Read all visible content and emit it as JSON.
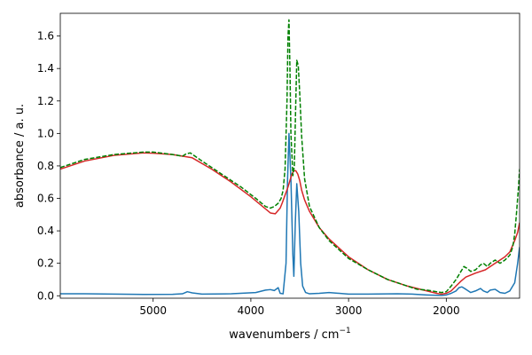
{
  "chart_data": {
    "type": "line",
    "title": "",
    "xlabel": "wavenumbers / cm",
    "xlabel_superscript": "−1",
    "ylabel": "absorbance / a. u.",
    "xlim": [
      5950,
      1250
    ],
    "ylim": [
      -0.015,
      1.74
    ],
    "x_ticks": [
      5000,
      4000,
      3000,
      2000
    ],
    "x_tick_labels": [
      "5000",
      "4000",
      "3000",
      "2000"
    ],
    "y_ticks": [
      0.0,
      0.2,
      0.4,
      0.6,
      0.8,
      1.0,
      1.2,
      1.4,
      1.6
    ],
    "y_tick_labels": [
      "0.0",
      "0.2",
      "0.4",
      "0.6",
      "0.8",
      "1.0",
      "1.2",
      "1.4",
      "1.6"
    ],
    "grid": false,
    "legend": "none",
    "series": [
      {
        "color": "#1f77b4",
        "style": "solid",
        "x": [
          5950,
          5700,
          5400,
          5100,
          4800,
          4700,
          4650,
          4600,
          4500,
          4200,
          3950,
          3850,
          3800,
          3760,
          3720,
          3700,
          3670,
          3640,
          3625,
          3610,
          3590,
          3570,
          3560,
          3545,
          3530,
          3510,
          3490,
          3470,
          3440,
          3400,
          3300,
          3200,
          3000,
          2800,
          2500,
          2350,
          2200,
          2050,
          2000,
          1950,
          1900,
          1870,
          1840,
          1800,
          1750,
          1700,
          1650,
          1620,
          1580,
          1550,
          1500,
          1450,
          1400,
          1350,
          1300,
          1270,
          1250
        ],
        "y": [
          0.012,
          0.012,
          0.01,
          0.008,
          0.009,
          0.012,
          0.025,
          0.018,
          0.01,
          0.012,
          0.02,
          0.035,
          0.038,
          0.032,
          0.05,
          0.015,
          0.012,
          0.2,
          0.7,
          1.0,
          0.72,
          0.25,
          0.12,
          0.45,
          0.69,
          0.52,
          0.2,
          0.06,
          0.02,
          0.012,
          0.015,
          0.02,
          0.01,
          0.01,
          0.012,
          0.01,
          0.005,
          0.002,
          0.005,
          0.015,
          0.03,
          0.05,
          0.055,
          0.04,
          0.02,
          0.03,
          0.045,
          0.03,
          0.02,
          0.035,
          0.04,
          0.02,
          0.015,
          0.03,
          0.08,
          0.2,
          0.3
        ]
      },
      {
        "color": "#d62728",
        "style": "solid",
        "x": [
          5950,
          5700,
          5400,
          5100,
          5000,
          4800,
          4600,
          4400,
          4200,
          4000,
          3900,
          3800,
          3750,
          3700,
          3680,
          3650,
          3620,
          3600,
          3580,
          3560,
          3540,
          3520,
          3500,
          3480,
          3450,
          3400,
          3300,
          3200,
          3000,
          2800,
          2600,
          2400,
          2200,
          2100,
          2050,
          2000,
          1950,
          1900,
          1850,
          1800,
          1700,
          1600,
          1500,
          1400,
          1350,
          1300,
          1270,
          1250
        ],
        "y": [
          0.78,
          0.83,
          0.865,
          0.88,
          0.878,
          0.87,
          0.85,
          0.78,
          0.7,
          0.61,
          0.56,
          0.51,
          0.505,
          0.54,
          0.57,
          0.62,
          0.67,
          0.71,
          0.75,
          0.77,
          0.77,
          0.75,
          0.71,
          0.65,
          0.59,
          0.52,
          0.42,
          0.35,
          0.24,
          0.16,
          0.1,
          0.06,
          0.03,
          0.015,
          0.01,
          0.015,
          0.03,
          0.06,
          0.09,
          0.115,
          0.14,
          0.16,
          0.2,
          0.24,
          0.27,
          0.34,
          0.39,
          0.45
        ]
      },
      {
        "color": "#008000",
        "style": "dashed",
        "x": [
          5950,
          5700,
          5400,
          5100,
          5000,
          4800,
          4700,
          4660,
          4620,
          4500,
          4300,
          4100,
          3950,
          3850,
          3800,
          3760,
          3720,
          3690,
          3670,
          3650,
          3630,
          3620,
          3610,
          3600,
          3590,
          3570,
          3555,
          3540,
          3530,
          3515,
          3500,
          3480,
          3450,
          3400,
          3300,
          3200,
          3000,
          2800,
          2600,
          2400,
          2300,
          2200,
          2100,
          2050,
          2000,
          1950,
          1900,
          1850,
          1820,
          1790,
          1750,
          1700,
          1650,
          1620,
          1580,
          1550,
          1500,
          1450,
          1400,
          1350,
          1320,
          1300,
          1280,
          1260,
          1250
        ],
        "y": [
          0.79,
          0.84,
          0.87,
          0.885,
          0.885,
          0.87,
          0.86,
          0.875,
          0.88,
          0.83,
          0.75,
          0.67,
          0.6,
          0.55,
          0.54,
          0.55,
          0.57,
          0.6,
          0.65,
          0.78,
          1.2,
          1.6,
          1.7,
          1.4,
          1.0,
          0.74,
          0.8,
          1.2,
          1.45,
          1.42,
          1.25,
          0.98,
          0.72,
          0.55,
          0.42,
          0.34,
          0.23,
          0.16,
          0.1,
          0.06,
          0.04,
          0.035,
          0.025,
          0.02,
          0.025,
          0.06,
          0.1,
          0.15,
          0.18,
          0.17,
          0.15,
          0.16,
          0.19,
          0.2,
          0.18,
          0.2,
          0.22,
          0.2,
          0.22,
          0.25,
          0.3,
          0.38,
          0.52,
          0.68,
          0.78
        ]
      }
    ]
  }
}
